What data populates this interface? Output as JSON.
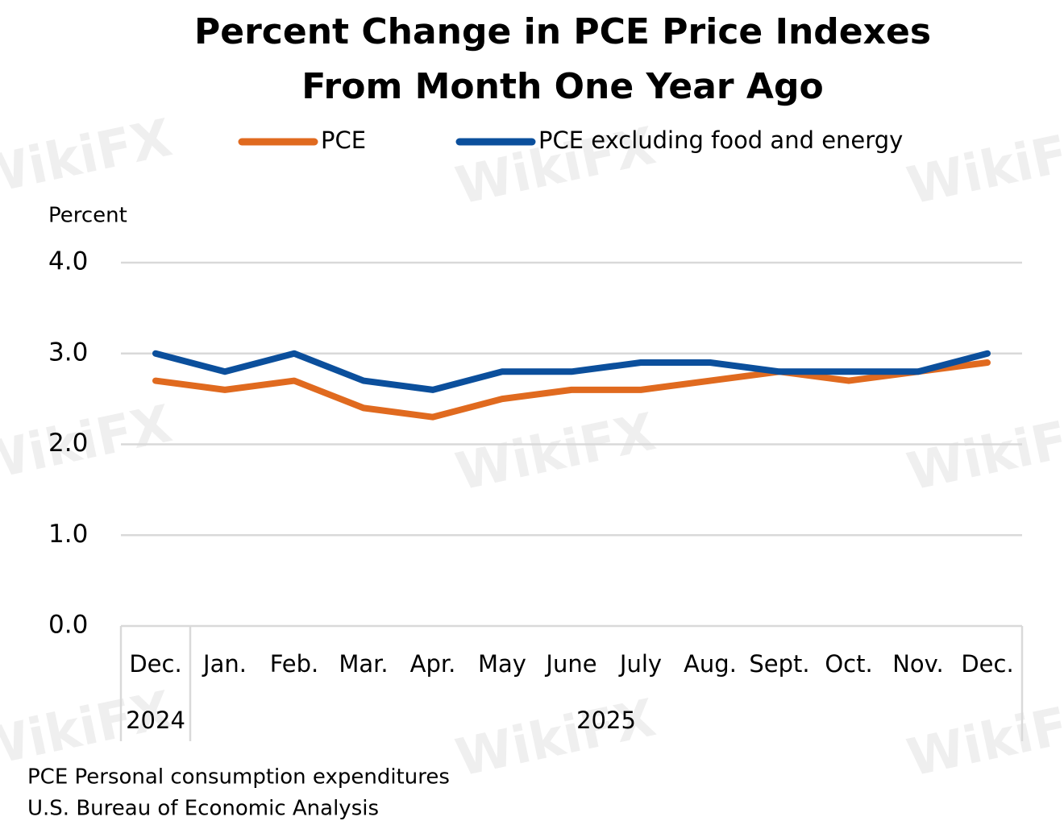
{
  "chart_data": {
    "type": "line",
    "title": [
      "Percent Change in PCE Price Indexes",
      "From Month One Year Ago"
    ],
    "y_label": "Percent",
    "categories": [
      "Dec.",
      "Jan.",
      "Feb.",
      "Mar.",
      "Apr.",
      "May",
      "June",
      "July",
      "Aug.",
      "Sept.",
      "Oct.",
      "Nov.",
      "Dec."
    ],
    "year_labels": [
      "2024",
      "2025"
    ],
    "series": [
      {
        "name": "PCE",
        "color": "#e06a1f",
        "values": [
          2.7,
          2.6,
          2.7,
          2.4,
          2.3,
          2.5,
          2.6,
          2.6,
          2.7,
          2.8,
          2.7,
          2.8,
          2.9
        ]
      },
      {
        "name": "PCE excluding food and energy",
        "color": "#0b4f9c",
        "values": [
          3.0,
          2.8,
          3.0,
          2.7,
          2.6,
          2.8,
          2.8,
          2.9,
          2.9,
          2.8,
          2.8,
          2.8,
          3.0
        ]
      }
    ],
    "ylim": [
      0,
      4
    ],
    "yticks": [
      {
        "value": 0,
        "label": "0.0"
      },
      {
        "value": 1,
        "label": "1.0"
      },
      {
        "value": 2,
        "label": "2.0"
      },
      {
        "value": 3,
        "label": "3.0"
      },
      {
        "value": 4,
        "label": "4.0"
      }
    ],
    "grid": true,
    "legend": "top",
    "notes": [
      "PCE Personal consumption expenditures",
      "U.S. Bureau of Economic Analysis"
    ],
    "watermark": "WikiFX"
  }
}
